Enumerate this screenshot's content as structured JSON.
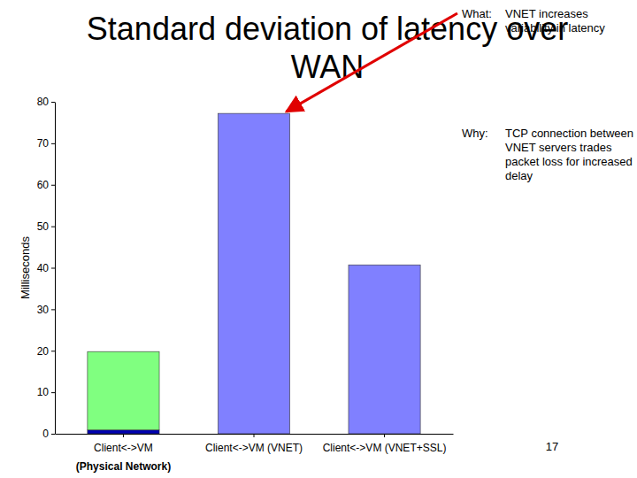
{
  "chart_data": {
    "type": "bar",
    "title": "Standard deviation of latency over WAN",
    "y_label": "Milliseconds",
    "categories": [
      "Client<->VM",
      "Client<->VM (VNET)",
      "Client<->VM (VNET+SSL)"
    ],
    "series": [
      {
        "color": "#0000b0",
        "values": [
          0.9,
          null,
          null
        ]
      },
      {
        "color": "#80ff80",
        "values": [
          18.9,
          null,
          null
        ]
      },
      {
        "color": "#8080ff",
        "values": [
          null,
          77.2,
          40.7
        ]
      }
    ],
    "stacked": true,
    "ylim": [
      0,
      80
    ],
    "yticks": [
      0,
      10,
      20,
      30,
      40,
      50,
      60,
      70,
      80
    ],
    "annotations": [
      {
        "label": "What:",
        "text": "VNET increases variability in latency"
      },
      {
        "label": "Why:",
        "text": "TCP connection between VNET servers trades packet loss for increased delay"
      }
    ],
    "category_note": "(Physical Network)",
    "page_number": "17"
  }
}
